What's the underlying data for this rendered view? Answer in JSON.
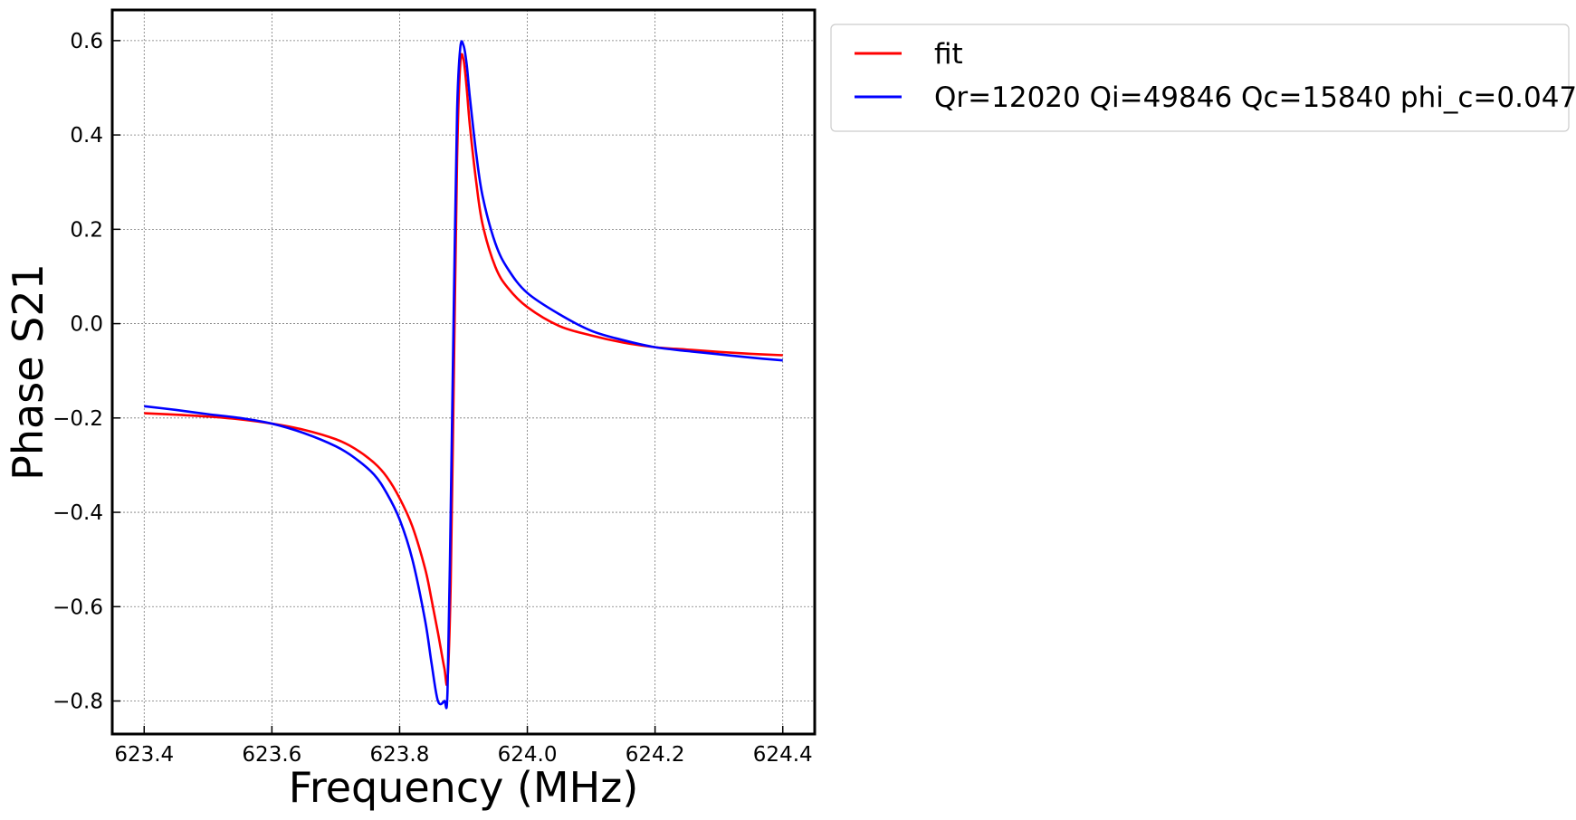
{
  "chart_data": {
    "type": "line",
    "xlabel": "Frequency (MHz)",
    "ylabel": "Phase S21",
    "xlim": [
      623.35,
      624.45
    ],
    "ylim": [
      -0.87,
      0.665
    ],
    "xticks": [
      623.4,
      623.6,
      623.8,
      624.0,
      624.2,
      624.4
    ],
    "xtick_labels": [
      "623.4",
      "623.6",
      "623.8",
      "624.0",
      "624.2",
      "624.4"
    ],
    "yticks": [
      0.6,
      0.4,
      0.2,
      0.0,
      -0.2,
      -0.4,
      -0.6,
      -0.8
    ],
    "ytick_labels": [
      "0.6",
      "0.4",
      "0.2",
      "0.0",
      "−0.2",
      "−0.4",
      "−0.6",
      "−0.8"
    ],
    "grid": true,
    "legend_position": "outside-right-top",
    "series": [
      {
        "name": "fit",
        "color": "#ff0000",
        "x": [
          623.4,
          623.45,
          623.5,
          623.55,
          623.6,
          623.65,
          623.7,
          623.73,
          623.76,
          623.78,
          623.8,
          623.82,
          623.84,
          623.85,
          623.86,
          623.87,
          623.875,
          623.88,
          623.885,
          623.89,
          623.895,
          623.9,
          623.905,
          623.91,
          623.92,
          623.93,
          623.95,
          623.97,
          624.0,
          624.05,
          624.1,
          624.15,
          624.2,
          624.25,
          624.3,
          624.35,
          624.4
        ],
        "y": [
          -0.19,
          -0.193,
          -0.197,
          -0.203,
          -0.212,
          -0.225,
          -0.245,
          -0.265,
          -0.295,
          -0.325,
          -0.37,
          -0.43,
          -0.52,
          -0.585,
          -0.655,
          -0.73,
          -0.755,
          -0.55,
          -0.1,
          0.35,
          0.55,
          0.56,
          0.5,
          0.42,
          0.3,
          0.21,
          0.12,
          0.075,
          0.035,
          -0.005,
          -0.025,
          -0.04,
          -0.05,
          -0.055,
          -0.06,
          -0.064,
          -0.067
        ]
      },
      {
        "name": "Qr=12020 Qi=49846 Qc=15840 phi_c=0.047",
        "color": "#0000ff",
        "x": [
          623.4,
          623.45,
          623.5,
          623.55,
          623.6,
          623.65,
          623.7,
          623.73,
          623.76,
          623.78,
          623.8,
          623.82,
          623.84,
          623.85,
          623.86,
          623.87,
          623.875,
          623.88,
          623.885,
          623.89,
          623.895,
          623.9,
          623.905,
          623.91,
          623.92,
          623.93,
          623.95,
          623.97,
          624.0,
          624.05,
          624.1,
          624.15,
          624.2,
          624.25,
          624.3,
          624.35,
          624.4
        ],
        "y": [
          -0.175,
          -0.183,
          -0.192,
          -0.2,
          -0.212,
          -0.232,
          -0.26,
          -0.285,
          -0.32,
          -0.36,
          -0.415,
          -0.5,
          -0.63,
          -0.72,
          -0.8,
          -0.8,
          -0.78,
          -0.4,
          0.05,
          0.45,
          0.585,
          0.59,
          0.55,
          0.48,
          0.36,
          0.27,
          0.17,
          0.115,
          0.065,
          0.02,
          -0.015,
          -0.035,
          -0.05,
          -0.058,
          -0.065,
          -0.072,
          -0.078
        ]
      }
    ]
  }
}
